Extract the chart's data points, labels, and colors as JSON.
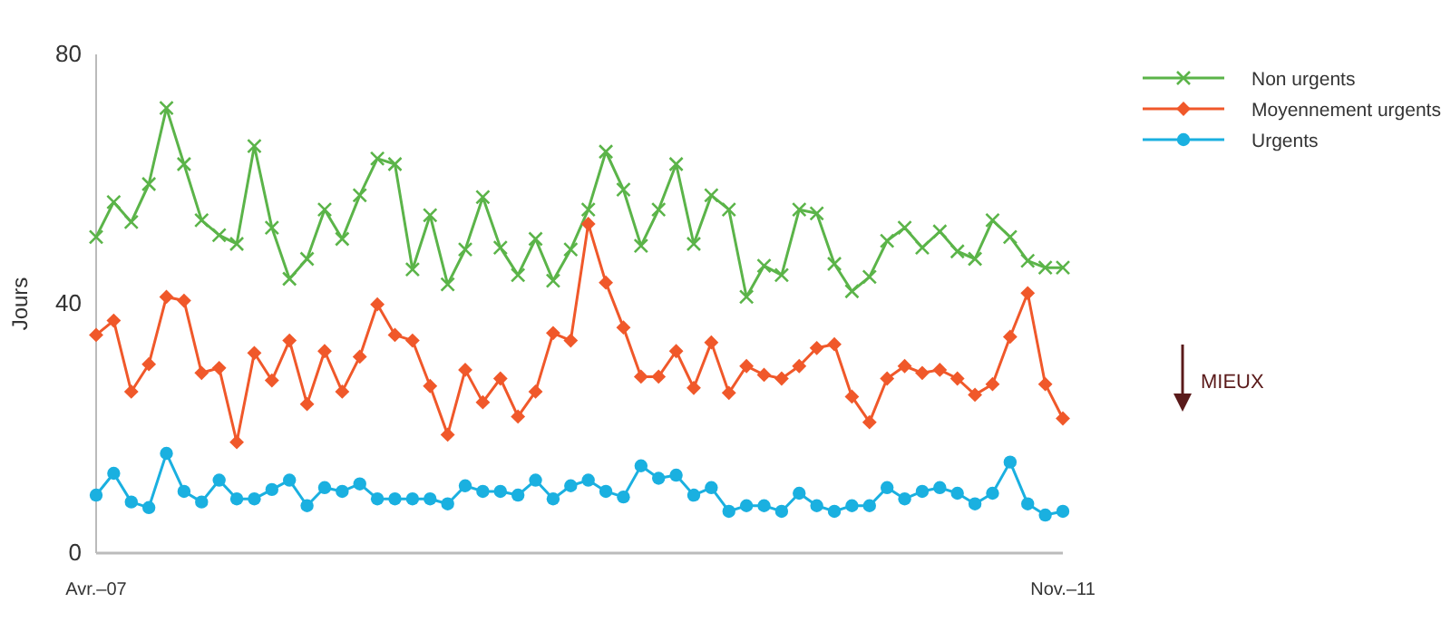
{
  "chart_data": {
    "type": "line",
    "ylabel": "Jours",
    "ylim": [
      0,
      80
    ],
    "yticks": [
      0,
      40,
      80
    ],
    "grid": false,
    "legend": "right",
    "tick_labels": "xy",
    "categories": [
      "Avr.–07",
      null,
      null,
      null,
      null,
      null,
      null,
      null,
      null,
      null,
      null,
      null,
      null,
      null,
      null,
      null,
      null,
      null,
      null,
      null,
      null,
      null,
      null,
      null,
      null,
      null,
      null,
      null,
      null,
      null,
      null,
      null,
      null,
      null,
      null,
      null,
      null,
      null,
      null,
      null,
      null,
      null,
      null,
      null,
      null,
      null,
      null,
      null,
      null,
      null,
      null,
      null,
      null,
      null,
      null,
      "Nov.–11"
    ],
    "series": [
      {
        "name": "Non urgents",
        "color": "#5bb449",
        "marker": "cross",
        "values": [
          50.7,
          56.3,
          53.1,
          59.2,
          71.4,
          62.4,
          53.4,
          51,
          49.6,
          65.3,
          52.2,
          44,
          47.2,
          55.1,
          50.4,
          57.4,
          63.3,
          62.4,
          45.5,
          54.2,
          43.1,
          48.7,
          57.1,
          49,
          44.6,
          50.4,
          43.7,
          48.7,
          55.1,
          64.4,
          58.3,
          49.3,
          55.1,
          62.4,
          49.6,
          57.4,
          55.1,
          41.1,
          46.1,
          44.6,
          55.1,
          54.5,
          46.4,
          42,
          44.3,
          50.1,
          52.2,
          49,
          51.6,
          48.4,
          47.2,
          53.4,
          50.7,
          46.9,
          45.8,
          45.8
        ]
      },
      {
        "name": "Moyennement urgents",
        "color": "#f0582a",
        "marker": "diamond",
        "values": [
          35,
          37.3,
          25.9,
          30.3,
          41.1,
          40.5,
          28.9,
          29.7,
          17.8,
          32.1,
          27.7,
          34.1,
          23.9,
          32.4,
          25.9,
          31.5,
          39.9,
          35,
          34.1,
          26.8,
          19,
          29.4,
          24.2,
          28,
          21.9,
          25.9,
          35.3,
          34.1,
          52.8,
          43.4,
          36.2,
          28.3,
          28.3,
          32.4,
          26.5,
          33.8,
          25.7,
          30,
          28.6,
          28,
          30,
          32.9,
          33.5,
          25.1,
          21,
          28,
          30,
          28.9,
          29.4,
          28,
          25.4,
          27.1,
          34.7,
          41.7,
          27.1,
          21.6
        ]
      },
      {
        "name": "Urgents",
        "color": "#1ab0e0",
        "marker": "circle",
        "values": [
          9.3,
          12.8,
          8.2,
          7.3,
          16,
          9.9,
          8.2,
          11.7,
          8.7,
          8.7,
          10.2,
          11.7,
          7.6,
          10.5,
          9.9,
          11.1,
          8.7,
          8.7,
          8.7,
          8.7,
          7.9,
          10.8,
          9.9,
          9.9,
          9.3,
          11.7,
          8.7,
          10.8,
          11.7,
          9.9,
          9,
          14,
          12,
          12.5,
          9.3,
          10.5,
          6.7,
          7.6,
          7.6,
          6.7,
          9.6,
          7.6,
          6.7,
          7.6,
          7.6,
          10.5,
          8.7,
          9.9,
          10.5,
          9.6,
          7.9,
          9.6,
          14.6,
          7.9,
          6.1,
          6.7
        ]
      }
    ],
    "annotations": [
      "MIEUX"
    ]
  }
}
